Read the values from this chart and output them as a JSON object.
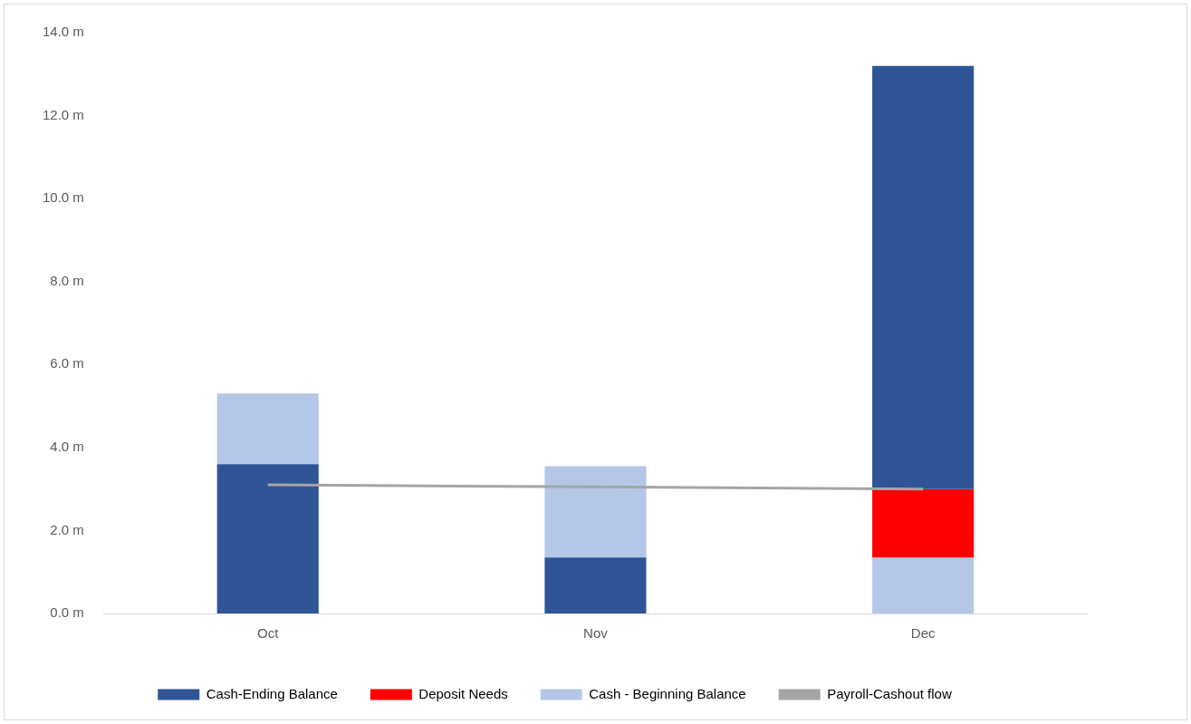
{
  "chart_data": {
    "type": "bar",
    "categories": [
      "Oct",
      "Nov",
      "Dec"
    ],
    "series": [
      {
        "name": "Cash-Ending Balance",
        "color": "#2f5597",
        "values": [
          3.6,
          1.35,
          10.2
        ],
        "base": [
          0,
          0,
          3.0
        ]
      },
      {
        "name": "Deposit Needs",
        "color": "#ff0000",
        "values": [
          null,
          null,
          1.65
        ],
        "base": [
          null,
          null,
          1.35
        ]
      },
      {
        "name": "Cash - Beginning Balance",
        "color": "#b4c7e7",
        "values": [
          1.7,
          2.2,
          1.35
        ],
        "base": [
          3.6,
          1.35,
          0
        ]
      },
      {
        "name": "Payroll-Cashout flow",
        "type": "line",
        "color": "#a5a5a5",
        "values": [
          3.1,
          3.05,
          3.0
        ]
      }
    ],
    "ylim": [
      0,
      14
    ],
    "yticks": [
      {
        "value": 0,
        "label": "0.0 m"
      },
      {
        "value": 2,
        "label": "2.0 m"
      },
      {
        "value": 4,
        "label": "4.0 m"
      },
      {
        "value": 6,
        "label": "6.0 m"
      },
      {
        "value": 8,
        "label": "8.0 m"
      },
      {
        "value": 10,
        "label": "10.0 m"
      },
      {
        "value": 12,
        "label": "12.0 m"
      },
      {
        "value": 14,
        "label": "14.0 m"
      }
    ],
    "grid": false,
    "legend": "bottom",
    "marker": "none"
  }
}
